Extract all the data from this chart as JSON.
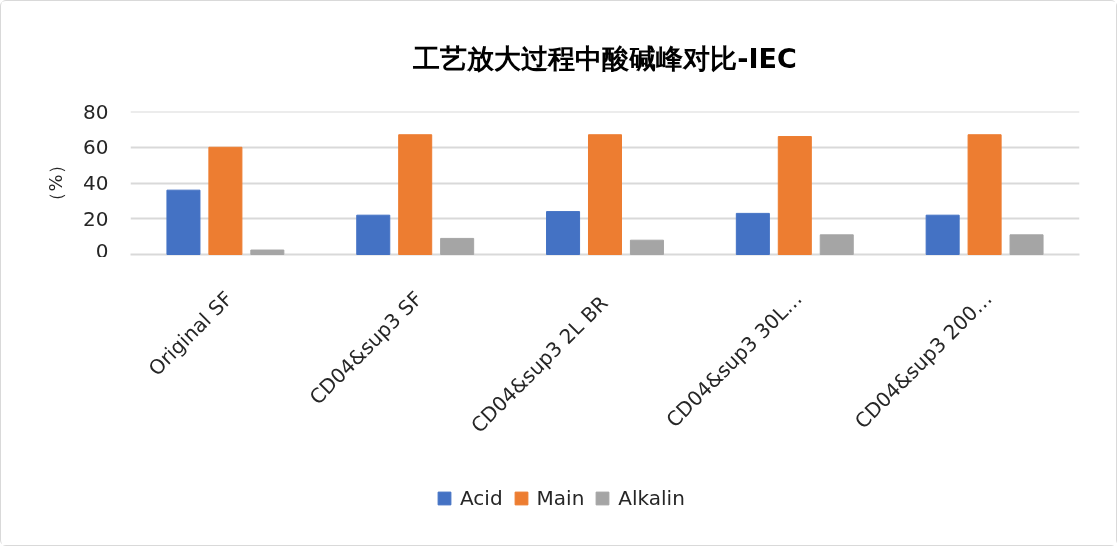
{
  "chart_data": {
    "type": "bar",
    "title": "工艺放大过程中酸碱峰对比-IEC",
    "ylabel": "（%）",
    "categories": [
      "Original  SF",
      "CD04&sup3  SF",
      "CD04&sup3  2L  BR",
      "CD04&sup3  30L…",
      "CD04&sup3  200…"
    ],
    "series": [
      {
        "name": "Acid",
        "color": "#4472c4",
        "values": [
          36,
          22,
          24,
          23,
          22
        ]
      },
      {
        "name": "Main",
        "color": "#ed7d31",
        "values": [
          60,
          67,
          67,
          66,
          67
        ]
      },
      {
        "name": "Alkalin",
        "color": "#a5a5a5",
        "values": [
          2.5,
          9,
          8,
          11,
          11
        ]
      }
    ],
    "ylim": [
      0,
      80
    ],
    "yticks": [
      0,
      20,
      40,
      60,
      80
    ],
    "grid": "y",
    "legend": "bottom"
  }
}
